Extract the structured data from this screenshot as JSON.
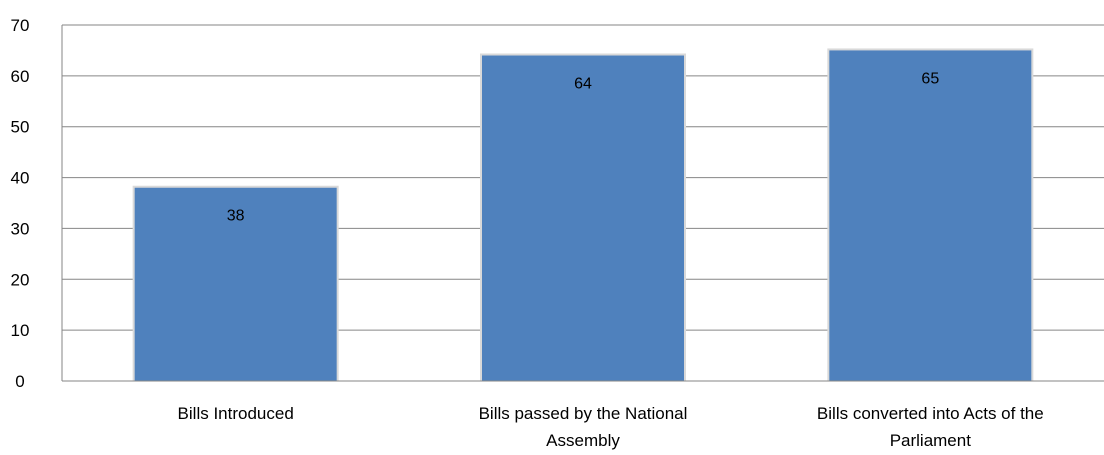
{
  "chart_data": {
    "type": "bar",
    "categories": [
      [
        "Bills Introduced"
      ],
      [
        "Bills passed by the National",
        "Assembly"
      ],
      [
        "Bills converted into Acts of the",
        "Parliament"
      ]
    ],
    "values": [
      38,
      64,
      65
    ],
    "data_labels": [
      "38",
      "64",
      "65"
    ],
    "y_ticks": [
      "0",
      "10",
      "20",
      "30",
      "40",
      "50",
      "60",
      "70"
    ],
    "ylim": [
      0,
      70
    ],
    "grid": true,
    "legend": "none",
    "colors": {
      "bar": "#4f81bd",
      "bar_edge": "#d9d9d9",
      "grid": "#868686",
      "axis": "#868686"
    }
  }
}
